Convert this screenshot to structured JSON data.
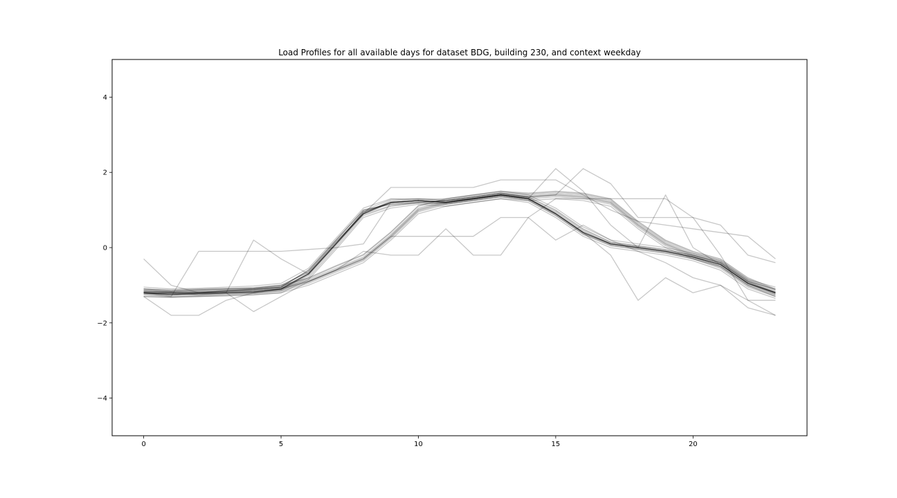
{
  "chart_data": {
    "type": "line",
    "title": "Load Profiles for all available days for dataset BDG, building 230, and context weekday",
    "xlabel": "",
    "ylabel": "",
    "xlim": [
      -1.15,
      24.15
    ],
    "ylim": [
      -5,
      5
    ],
    "xticks": [
      0,
      5,
      10,
      15,
      20
    ],
    "xtick_labels": [
      "0",
      "5",
      "10",
      "15",
      "20"
    ],
    "yticks": [
      -4,
      -2,
      0,
      2,
      4
    ],
    "ytick_labels": [
      "−4",
      "−2",
      "0",
      "2",
      "4"
    ],
    "grid": false,
    "legend": "none",
    "line_color": "#000000",
    "line_alpha": 0.22,
    "x": [
      0,
      1,
      2,
      3,
      4,
      5,
      6,
      7,
      8,
      9,
      10,
      11,
      12,
      13,
      14,
      15,
      16,
      17,
      18,
      19,
      20,
      21,
      22,
      23
    ],
    "series": [
      {
        "values": [
          -1.2,
          -1.25,
          -1.22,
          -1.2,
          -1.18,
          -1.1,
          -0.7,
          0.1,
          0.95,
          1.2,
          1.25,
          1.2,
          1.3,
          1.4,
          1.3,
          0.9,
          0.4,
          0.1,
          0.0,
          -0.1,
          -0.25,
          -0.45,
          -0.95,
          -1.2
        ]
      },
      {
        "values": [
          -1.15,
          -1.18,
          -1.2,
          -1.15,
          -1.12,
          -1.05,
          -0.6,
          0.2,
          1.0,
          1.15,
          1.2,
          1.25,
          1.35,
          1.45,
          1.35,
          1.0,
          0.5,
          0.15,
          0.05,
          -0.05,
          -0.2,
          -0.4,
          -0.9,
          -1.1
        ]
      },
      {
        "values": [
          -1.25,
          -1.3,
          -1.28,
          -1.25,
          -1.22,
          -1.15,
          -0.8,
          0.0,
          0.85,
          1.1,
          1.2,
          1.15,
          1.25,
          1.35,
          1.25,
          0.85,
          0.35,
          0.05,
          -0.05,
          -0.15,
          -0.3,
          -0.55,
          -1.05,
          -1.3
        ]
      },
      {
        "values": [
          -1.1,
          -1.15,
          -1.12,
          -1.1,
          -1.08,
          -1.0,
          -0.65,
          0.15,
          0.9,
          1.25,
          1.3,
          1.25,
          1.3,
          1.4,
          1.3,
          0.95,
          0.45,
          0.1,
          0.0,
          -0.1,
          -0.25,
          -0.5,
          -1.0,
          -1.25
        ]
      },
      {
        "values": [
          -1.3,
          -1.32,
          -1.3,
          -1.28,
          -1.25,
          -1.2,
          -0.85,
          -0.05,
          0.8,
          1.05,
          1.15,
          1.1,
          1.2,
          1.3,
          1.2,
          0.8,
          0.3,
          0.0,
          -0.1,
          -0.2,
          -0.35,
          -0.6,
          -1.1,
          -1.35
        ]
      },
      {
        "values": [
          -1.05,
          -1.1,
          -1.08,
          -1.05,
          -1.02,
          -0.95,
          -0.55,
          0.25,
          1.05,
          1.3,
          1.28,
          1.3,
          1.4,
          1.5,
          1.4,
          1.05,
          0.55,
          0.2,
          0.1,
          0.0,
          -0.15,
          -0.35,
          -0.85,
          -1.05
        ]
      },
      {
        "values": [
          -1.2,
          -1.22,
          -1.25,
          -1.22,
          -1.2,
          -1.12,
          -0.75,
          0.05,
          0.9,
          1.18,
          1.22,
          1.18,
          1.28,
          1.38,
          1.28,
          0.88,
          0.38,
          0.08,
          -0.02,
          -0.12,
          -0.28,
          -0.48,
          -0.98,
          -1.22
        ]
      },
      {
        "values": [
          -1.18,
          -1.2,
          -1.18,
          -1.16,
          -1.14,
          -1.08,
          -0.68,
          0.12,
          0.92,
          1.22,
          1.26,
          1.22,
          1.32,
          1.42,
          1.32,
          0.92,
          0.42,
          0.12,
          0.02,
          -0.08,
          -0.22,
          -0.42,
          -0.92,
          -1.18
        ]
      },
      {
        "values": [
          -1.22,
          -1.24,
          -1.22,
          -1.2,
          -1.18,
          -1.12,
          -0.72,
          0.08,
          0.88,
          1.12,
          1.18,
          1.16,
          1.26,
          1.36,
          1.26,
          0.86,
          0.36,
          0.06,
          -0.04,
          -0.14,
          -0.3,
          -0.52,
          -1.02,
          -1.28
        ]
      },
      {
        "values": [
          -1.15,
          -1.18,
          -1.15,
          -1.13,
          -1.1,
          -1.04,
          -0.62,
          0.18,
          0.98,
          1.28,
          1.3,
          1.26,
          1.34,
          1.44,
          1.34,
          0.98,
          0.48,
          0.14,
          0.04,
          -0.06,
          -0.2,
          -0.38,
          -0.88,
          -1.12
        ]
      },
      {
        "values": [
          -1.2,
          -1.22,
          -1.2,
          -1.18,
          -1.16,
          -1.1,
          -0.9,
          -0.6,
          -0.3,
          0.3,
          1.0,
          1.2,
          1.3,
          1.4,
          1.35,
          1.4,
          1.35,
          1.2,
          0.6,
          0.1,
          -0.2,
          -0.4,
          -0.9,
          -1.2
        ]
      },
      {
        "values": [
          -1.15,
          -1.18,
          -1.16,
          -1.14,
          -1.12,
          -1.06,
          -0.85,
          -0.55,
          -0.25,
          0.35,
          1.05,
          1.25,
          1.35,
          1.45,
          1.4,
          1.45,
          1.4,
          1.25,
          0.65,
          0.15,
          -0.15,
          -0.35,
          -0.85,
          -1.15
        ]
      },
      {
        "values": [
          -1.25,
          -1.28,
          -1.26,
          -1.24,
          -1.22,
          -1.16,
          -0.95,
          -0.65,
          -0.35,
          0.25,
          0.95,
          1.15,
          1.25,
          1.35,
          1.3,
          1.35,
          1.3,
          1.15,
          0.55,
          0.05,
          -0.25,
          -0.45,
          -0.95,
          -1.25
        ]
      },
      {
        "values": [
          -1.1,
          -1.12,
          -1.1,
          -1.08,
          -1.06,
          -1.0,
          -0.82,
          -0.5,
          -0.2,
          0.4,
          1.1,
          1.3,
          1.4,
          1.5,
          1.45,
          1.5,
          1.45,
          1.3,
          0.7,
          0.2,
          -0.1,
          -0.3,
          -0.8,
          -1.1
        ]
      },
      {
        "values": [
          -1.3,
          -1.32,
          -1.3,
          -1.28,
          -1.26,
          -1.2,
          -1.0,
          -0.7,
          -0.4,
          0.2,
          0.9,
          1.1,
          1.2,
          1.3,
          1.25,
          1.3,
          1.25,
          1.1,
          0.5,
          0.0,
          -0.3,
          -0.5,
          -1.0,
          -1.3
        ]
      },
      {
        "values": [
          -1.18,
          -1.2,
          -1.18,
          -1.16,
          -1.14,
          -1.08,
          -0.88,
          -0.58,
          -0.28,
          0.32,
          1.02,
          1.22,
          1.32,
          1.42,
          1.37,
          1.42,
          1.37,
          1.22,
          0.62,
          0.12,
          -0.18,
          -0.38,
          -0.88,
          -1.18
        ]
      },
      {
        "values": [
          -1.22,
          -1.25,
          -1.23,
          -1.21,
          -1.19,
          -1.13,
          -0.92,
          -0.62,
          -0.32,
          0.28,
          0.98,
          1.18,
          1.28,
          1.38,
          1.33,
          1.38,
          1.33,
          1.18,
          0.58,
          0.08,
          -0.22,
          -0.42,
          -0.92,
          -1.22
        ]
      },
      {
        "values": [
          -1.12,
          -1.15,
          -1.13,
          -1.11,
          -1.09,
          -1.03,
          -0.8,
          -0.48,
          -0.18,
          0.42,
          1.12,
          1.28,
          1.38,
          1.48,
          1.43,
          1.48,
          1.43,
          1.28,
          0.68,
          0.18,
          -0.12,
          -0.32,
          -0.82,
          -1.12
        ]
      },
      {
        "values": [
          -0.3,
          -1.0,
          -1.2,
          -1.15,
          -1.1,
          -1.05,
          -0.7,
          0.1,
          0.9,
          1.2,
          1.25,
          1.2,
          1.3,
          1.4,
          1.3,
          0.9,
          0.4,
          0.1,
          0.0,
          -0.1,
          -0.25,
          -0.45,
          -0.95,
          -1.2
        ]
      },
      {
        "values": [
          -1.2,
          -1.3,
          -0.1,
          -0.1,
          -0.1,
          -0.1,
          -0.05,
          0.0,
          0.1,
          1.2,
          1.25,
          1.2,
          1.3,
          1.4,
          1.3,
          0.9,
          0.4,
          0.1,
          0.0,
          -0.1,
          -0.25,
          -0.45,
          -0.95,
          -1.2
        ]
      },
      {
        "values": [
          -1.3,
          -1.8,
          -1.8,
          -1.4,
          -1.2,
          -1.1,
          -0.7,
          0.1,
          0.9,
          1.2,
          1.25,
          1.2,
          1.3,
          1.4,
          1.3,
          0.9,
          0.4,
          0.1,
          0.0,
          -0.1,
          -0.25,
          -0.45,
          -0.95,
          -1.2
        ]
      },
      {
        "values": [
          -1.2,
          -1.25,
          -1.2,
          -1.2,
          0.2,
          -0.3,
          -0.7,
          0.1,
          0.9,
          1.2,
          1.25,
          1.2,
          1.3,
          1.4,
          1.3,
          0.9,
          0.4,
          0.1,
          0.0,
          -0.1,
          -0.25,
          -0.45,
          -0.95,
          -1.2
        ]
      },
      {
        "values": [
          -1.2,
          -1.2,
          -1.25,
          -1.2,
          -1.7,
          -1.3,
          -0.9,
          -0.6,
          -0.1,
          -0.2,
          -0.2,
          0.5,
          -0.2,
          -0.2,
          0.8,
          1.3,
          1.3,
          1.3,
          1.3,
          1.3,
          0.8,
          -0.2,
          -1.4,
          -1.4
        ]
      },
      {
        "values": [
          -1.2,
          -1.25,
          -1.22,
          -1.2,
          -1.18,
          -1.1,
          -0.7,
          0.1,
          0.95,
          1.2,
          1.25,
          1.2,
          1.3,
          1.4,
          1.3,
          0.9,
          0.4,
          -0.2,
          -1.4,
          -0.8,
          -1.2,
          -1.0,
          -1.4,
          -1.8
        ]
      },
      {
        "values": [
          -1.2,
          -1.25,
          -1.22,
          -1.2,
          -1.18,
          -1.1,
          -0.7,
          0.1,
          0.95,
          1.2,
          1.25,
          1.2,
          1.3,
          1.4,
          1.3,
          2.1,
          1.5,
          0.6,
          0.0,
          1.4,
          0.0,
          -0.45,
          -0.95,
          -1.2
        ]
      },
      {
        "values": [
          -1.15,
          -1.18,
          -1.2,
          -1.15,
          -1.12,
          -1.05,
          -0.6,
          0.2,
          1.0,
          1.15,
          1.2,
          1.25,
          1.35,
          1.45,
          1.35,
          1.4,
          2.1,
          1.7,
          0.8,
          0.8,
          0.8,
          0.6,
          -0.2,
          -0.4
        ]
      },
      {
        "values": [
          -1.2,
          -1.22,
          -1.2,
          -1.18,
          -1.16,
          -1.1,
          -0.9,
          -0.6,
          -0.3,
          0.3,
          0.3,
          0.3,
          0.3,
          0.8,
          0.8,
          0.2,
          0.6,
          0.2,
          -0.1,
          -0.4,
          -0.8,
          -1.0,
          -1.6,
          -1.8
        ]
      },
      {
        "values": [
          -1.1,
          -1.15,
          -1.12,
          -1.1,
          -1.08,
          -1.0,
          -0.65,
          0.15,
          0.9,
          1.6,
          1.6,
          1.6,
          1.6,
          1.8,
          1.8,
          1.8,
          1.4,
          1.0,
          0.7,
          0.6,
          0.5,
          0.4,
          0.3,
          -0.3
        ]
      }
    ]
  }
}
